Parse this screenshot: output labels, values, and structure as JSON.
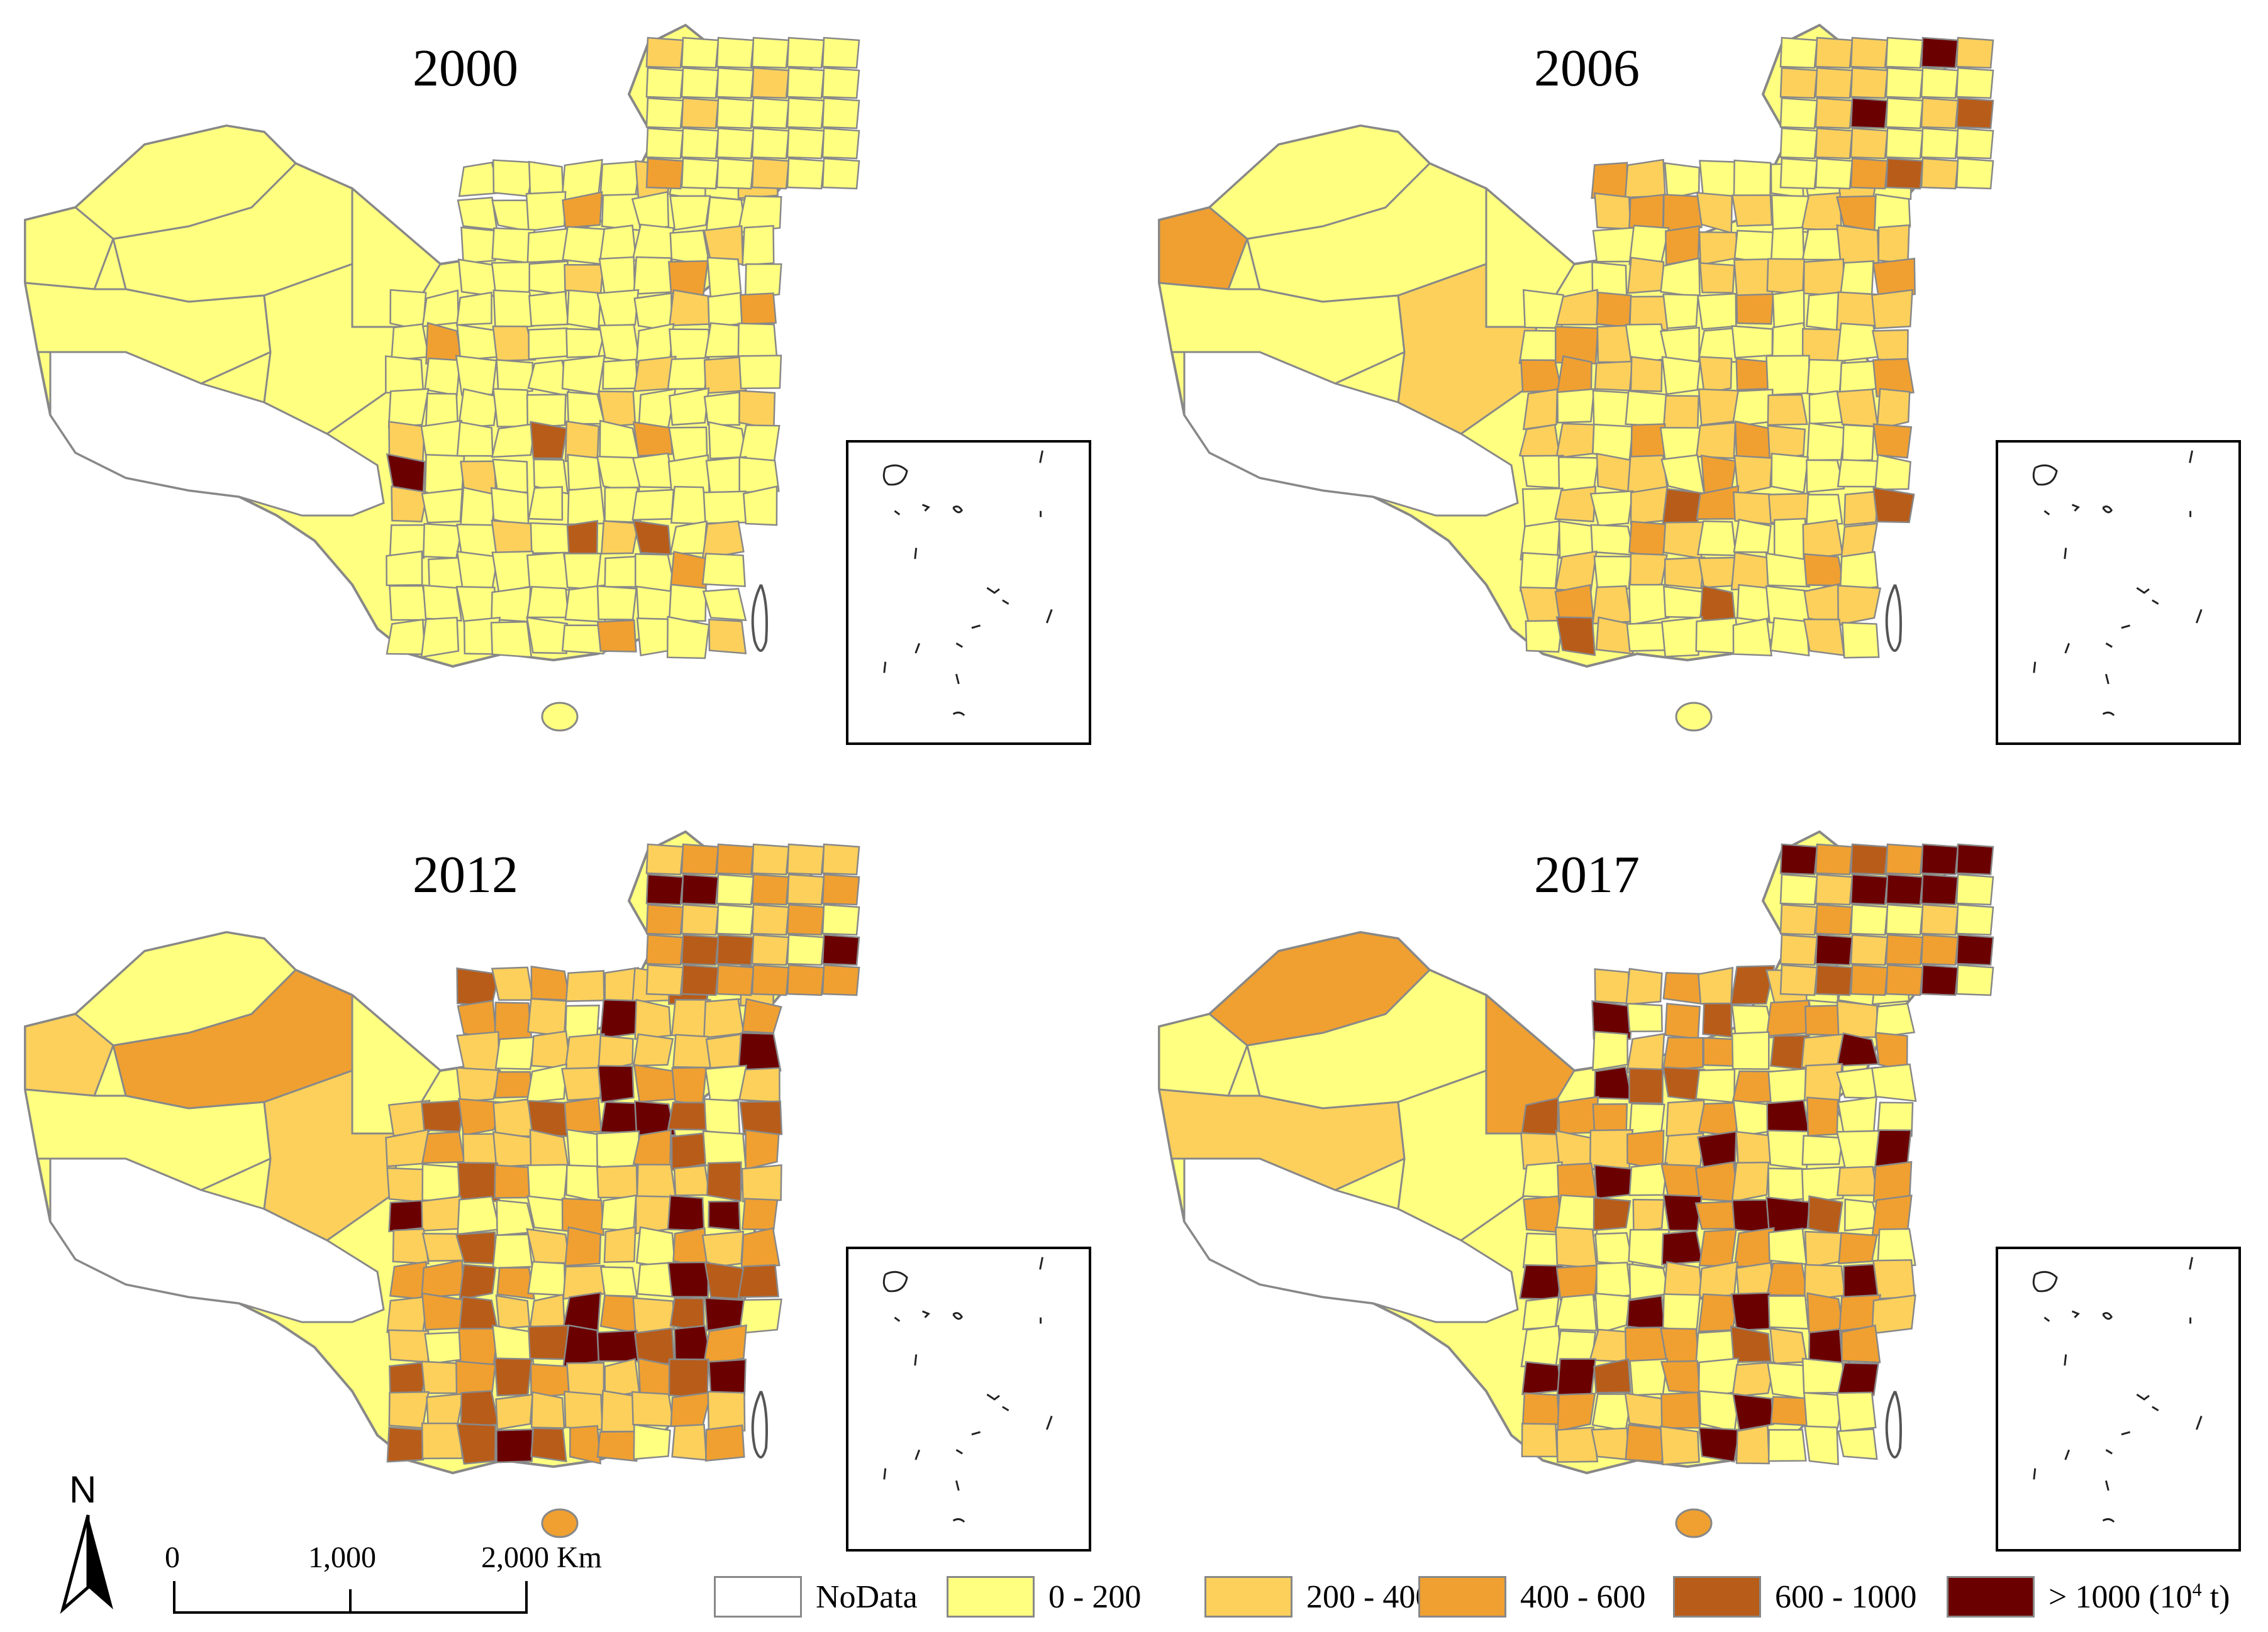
{
  "panels": [
    {
      "year": "2000"
    },
    {
      "year": "2006"
    },
    {
      "year": "2012"
    },
    {
      "year": "2017"
    }
  ],
  "scale_bar": {
    "ticks": [
      "0",
      "1,000",
      "2,000 Km"
    ]
  },
  "north_arrow": {
    "label": "N"
  },
  "legend": {
    "items": [
      {
        "label": "NoData",
        "color": "#ffffff"
      },
      {
        "label": "0 - 200",
        "color": "#ffff80"
      },
      {
        "label": "200 - 400",
        "color": "#fcd05a"
      },
      {
        "label": "400 - 600",
        "color": "#f0a030"
      },
      {
        "label": "600 - 1000",
        "color": "#b85c1a"
      },
      {
        "label": "> 1000 (10",
        "color": "#6b0000"
      }
    ],
    "unit_exponent": "4",
    "unit_suffix": " t)"
  },
  "colors": {
    "boundary": "#888888",
    "nodata_fill": "#ffffff"
  }
}
